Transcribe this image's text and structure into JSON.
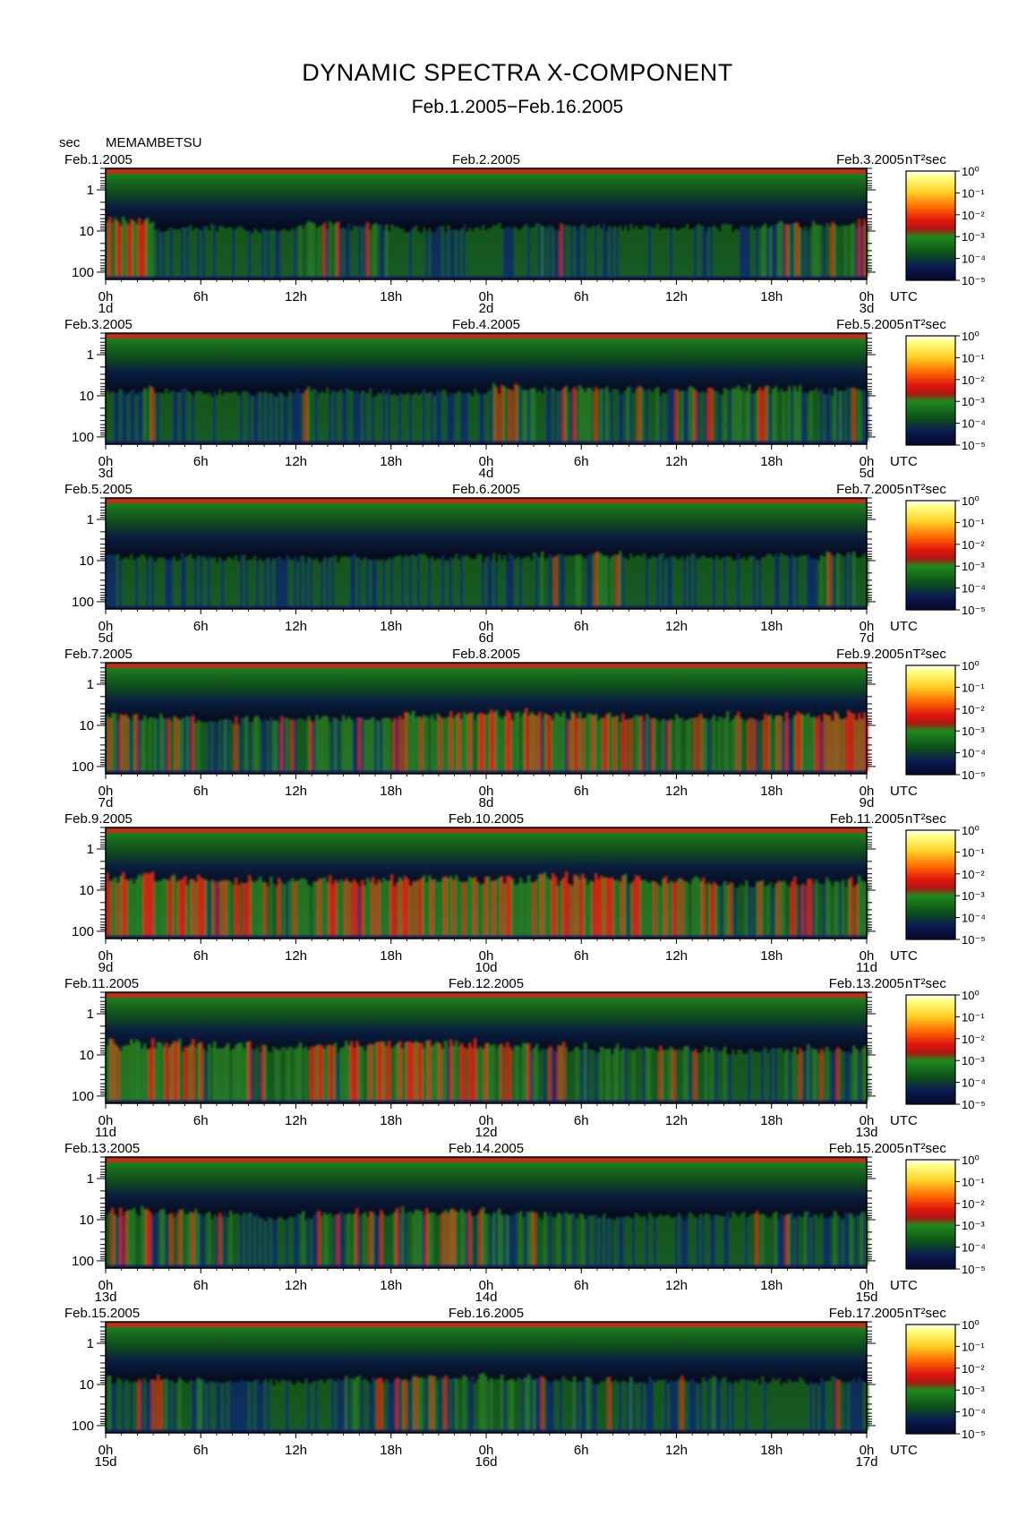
{
  "title": "DYNAMIC SPECTRA X-COMPONENT",
  "subtitle": "Feb.1.2005−Feb.16.2005",
  "station": "MEMAMBETSU",
  "y_unit": "sec",
  "colorbar_unit": "nT²sec",
  "utc_label": "UTC",
  "chart_data": {
    "type": "heatmap",
    "title": "DYNAMIC SPECTRA X-COMPONENT",
    "subtitle": "Feb.1.2005−Feb.16.2005",
    "ylabel": "sec",
    "y_scale": "log",
    "y_ticks": [
      "1",
      "10",
      "100"
    ],
    "x_ticks": [
      "0h",
      "6h",
      "12h",
      "18h",
      "0h",
      "6h",
      "12h",
      "18h",
      "0h"
    ],
    "colorbar": {
      "unit": "nT²sec",
      "scale": "log",
      "tick_labels": [
        "10⁰",
        "10⁻¹",
        "10⁻²",
        "10⁻³",
        "10⁻⁴",
        "10⁻⁵"
      ],
      "colors": [
        "#ffff66",
        "#ffcc22",
        "#ff5500",
        "#e21a0e",
        "#cc1a12",
        "#1f8a1f",
        "#0f5a1a",
        "#0b1a52",
        "#050826"
      ]
    },
    "panels": [
      {
        "left_date": "Feb.1.2005",
        "mid_date": "Feb.2.2005",
        "right_date": "Feb.3.2005",
        "day_labels": [
          "1d",
          "2d",
          "3d"
        ],
        "activity_level": [
          0.7,
          0.3,
          0.4,
          0.25,
          0.5,
          0.45,
          0.3,
          0.35,
          0.4,
          0.45,
          0.4,
          0.35,
          0.4,
          0.45,
          0.55,
          0.6
        ]
      },
      {
        "left_date": "Feb.3.2005",
        "mid_date": "Feb.4.2005",
        "right_date": "Feb.5.2005",
        "day_labels": [
          "3d",
          "4d",
          "5d"
        ],
        "activity_level": [
          0.45,
          0.4,
          0.35,
          0.3,
          0.45,
          0.4,
          0.35,
          0.4,
          0.6,
          0.55,
          0.5,
          0.5,
          0.55,
          0.55,
          0.5,
          0.5
        ]
      },
      {
        "left_date": "Feb.5.2005",
        "mid_date": "Feb.6.2005",
        "right_date": "Feb.7.2005",
        "day_labels": [
          "5d",
          "6d",
          "7d"
        ],
        "activity_level": [
          0.4,
          0.35,
          0.3,
          0.3,
          0.3,
          0.35,
          0.4,
          0.35,
          0.4,
          0.45,
          0.5,
          0.4,
          0.35,
          0.35,
          0.4,
          0.45
        ]
      },
      {
        "left_date": "Feb.7.2005",
        "mid_date": "Feb.8.2005",
        "right_date": "Feb.9.2005",
        "day_labels": [
          "7d",
          "8d",
          "9d"
        ],
        "activity_level": [
          0.6,
          0.55,
          0.45,
          0.45,
          0.55,
          0.6,
          0.7,
          0.75,
          0.8,
          0.8,
          0.7,
          0.65,
          0.6,
          0.65,
          0.7,
          0.75
        ]
      },
      {
        "left_date": "Feb.9.2005",
        "mid_date": "Feb.10.2005",
        "right_date": "Feb.11.2005",
        "day_labels": [
          "9d",
          "10d",
          "11d"
        ],
        "activity_level": [
          0.85,
          0.8,
          0.7,
          0.65,
          0.7,
          0.75,
          0.8,
          0.8,
          0.85,
          0.85,
          0.8,
          0.75,
          0.65,
          0.55,
          0.6,
          0.65
        ]
      },
      {
        "left_date": "Feb.11.2005",
        "mid_date": "Feb.12.2005",
        "right_date": "Feb.13.2005",
        "day_labels": [
          "11d",
          "12d",
          "13d"
        ],
        "activity_level": [
          0.85,
          0.8,
          0.7,
          0.6,
          0.65,
          0.75,
          0.8,
          0.8,
          0.7,
          0.6,
          0.55,
          0.5,
          0.5,
          0.45,
          0.5,
          0.5
        ]
      },
      {
        "left_date": "Feb.13.2005",
        "mid_date": "Feb.14.2005",
        "right_date": "Feb.15.2005",
        "day_labels": [
          "13d",
          "14d",
          "15d"
        ],
        "activity_level": [
          0.65,
          0.6,
          0.45,
          0.35,
          0.45,
          0.55,
          0.65,
          0.7,
          0.55,
          0.45,
          0.4,
          0.35,
          0.4,
          0.45,
          0.45,
          0.45
        ]
      },
      {
        "left_date": "Feb.15.2005",
        "mid_date": "Feb.16.2005",
        "right_date": "Feb.17.2005",
        "day_labels": [
          "15d",
          "16d",
          "17d"
        ],
        "activity_level": [
          0.5,
          0.45,
          0.35,
          0.3,
          0.4,
          0.5,
          0.55,
          0.55,
          0.5,
          0.45,
          0.45,
          0.5,
          0.45,
          0.4,
          0.4,
          0.45
        ]
      }
    ]
  }
}
